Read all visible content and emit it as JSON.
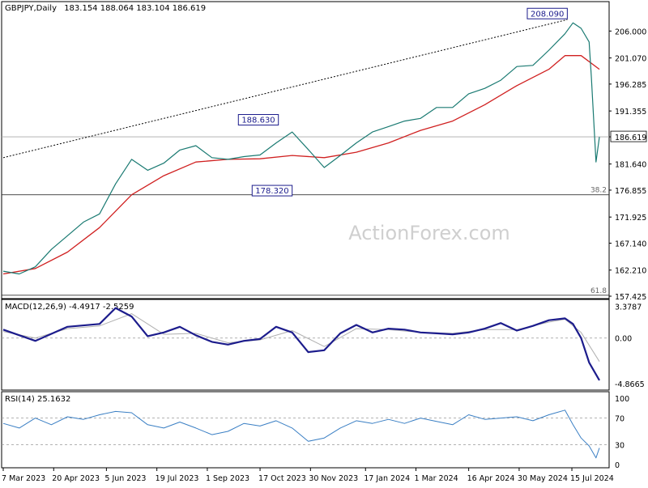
{
  "chart_data": [
    {
      "type": "line",
      "title": "GBPJPY,Daily",
      "ohlc_readout": "183.154 188.064 183.104 186.619",
      "ylim": [
        157.425,
        210.5
      ],
      "y_ticks": [
        "206.000",
        "201.070",
        "196.285",
        "191.355",
        "186.619",
        "181.640",
        "176.855",
        "171.925",
        "167.140",
        "162.210",
        "157.425"
      ],
      "current_price": "186.619",
      "watermark": "ActionForex.com",
      "annotations": [
        {
          "text": "208.090",
          "x": "2024-07-11",
          "y": 208.09
        },
        {
          "text": "188.630",
          "x": "2023-11-02",
          "y": 188.63
        },
        {
          "text": "178.320",
          "x": "2023-11-14",
          "y": 178.32
        }
      ],
      "fib_levels": [
        {
          "label": "38.2",
          "y": 176.0
        },
        {
          "label": "61.8",
          "y": 157.6
        }
      ],
      "trendline": {
        "from": {
          "x": "2023-03-07",
          "y": 182.8
        },
        "to": {
          "x": "2024-07-11",
          "y": 208.09
        }
      },
      "series": [
        {
          "name": "GBPJPY",
          "color": "#1a7a72",
          "x": [
            "2023-03-07",
            "2023-03-21",
            "2023-04-04",
            "2023-04-18",
            "2023-05-02",
            "2023-05-16",
            "2023-05-30",
            "2023-06-13",
            "2023-06-27",
            "2023-07-11",
            "2023-07-25",
            "2023-08-08",
            "2023-08-22",
            "2023-09-05",
            "2023-09-19",
            "2023-10-03",
            "2023-10-17",
            "2023-10-31",
            "2023-11-14",
            "2023-11-28",
            "2023-12-12",
            "2023-12-26",
            "2024-01-09",
            "2024-01-23",
            "2024-02-06",
            "2024-02-20",
            "2024-03-05",
            "2024-03-19",
            "2024-04-02",
            "2024-04-16",
            "2024-04-30",
            "2024-05-14",
            "2024-05-28",
            "2024-06-11",
            "2024-06-25",
            "2024-07-09",
            "2024-07-16",
            "2024-07-23",
            "2024-07-30",
            "2024-08-01",
            "2024-08-05",
            "2024-08-08"
          ],
          "values": [
            162.0,
            161.5,
            162.8,
            166.0,
            168.5,
            171.0,
            172.5,
            178.0,
            182.5,
            180.5,
            181.8,
            184.2,
            185.0,
            182.8,
            182.5,
            183.0,
            183.3,
            185.5,
            187.5,
            184.3,
            181.0,
            183.2,
            185.5,
            187.5,
            188.5,
            189.5,
            190.0,
            192.0,
            192.0,
            194.5,
            195.5,
            197.0,
            199.5,
            199.7,
            202.5,
            205.5,
            207.5,
            206.5,
            204.0,
            197.5,
            182.0,
            186.6
          ]
        },
        {
          "name": "",
          "color": "#d02020",
          "x": [
            "2023-03-07",
            "2023-04-04",
            "2023-05-02",
            "2023-05-30",
            "2023-06-27",
            "2023-07-25",
            "2023-08-22",
            "2023-09-19",
            "2023-10-17",
            "2023-11-14",
            "2023-12-12",
            "2024-01-09",
            "2024-02-06",
            "2024-03-05",
            "2024-04-02",
            "2024-04-30",
            "2024-05-28",
            "2024-06-25",
            "2024-07-09",
            "2024-07-23",
            "2024-08-08"
          ],
          "values": [
            161.5,
            162.5,
            165.5,
            170.0,
            176.0,
            179.5,
            182.0,
            182.5,
            182.6,
            183.2,
            182.8,
            183.8,
            185.5,
            187.8,
            189.5,
            192.5,
            196.0,
            199.0,
            201.5,
            201.5,
            199.0
          ]
        }
      ]
    },
    {
      "type": "line",
      "title": "MACD(12,26,9) -4.4917 -2.5259",
      "y_ticks": [
        "3.3787",
        "0.00",
        "-4.8665"
      ],
      "ylim": [
        -5.2,
        3.6
      ],
      "series": [
        {
          "name": "MACD",
          "color": "#1c1c8c",
          "x": [
            "2023-03-07",
            "2023-04-04",
            "2023-05-02",
            "2023-05-30",
            "2023-06-13",
            "2023-06-27",
            "2023-07-11",
            "2023-07-25",
            "2023-08-08",
            "2023-08-22",
            "2023-09-05",
            "2023-09-19",
            "2023-10-03",
            "2023-10-17",
            "2023-10-31",
            "2023-11-14",
            "2023-11-28",
            "2023-12-12",
            "2023-12-26",
            "2024-01-09",
            "2024-01-23",
            "2024-02-06",
            "2024-02-20",
            "2024-03-05",
            "2024-03-19",
            "2024-04-02",
            "2024-04-16",
            "2024-04-30",
            "2024-05-14",
            "2024-05-28",
            "2024-06-11",
            "2024-06-25",
            "2024-07-09",
            "2024-07-16",
            "2024-07-23",
            "2024-07-30",
            "2024-08-08"
          ],
          "values": [
            0.9,
            -0.3,
            1.2,
            1.5,
            3.2,
            2.3,
            0.2,
            0.6,
            1.2,
            0.3,
            -0.4,
            -0.7,
            -0.3,
            -0.1,
            1.2,
            0.6,
            -1.5,
            -1.3,
            0.5,
            1.4,
            0.6,
            1.0,
            0.9,
            0.6,
            0.5,
            0.4,
            0.6,
            1.0,
            1.6,
            0.8,
            1.3,
            1.9,
            2.1,
            1.5,
            0.0,
            -2.6,
            -4.5
          ]
        },
        {
          "name": "Signal",
          "color": "#b0b0b0",
          "x": [
            "2023-03-07",
            "2023-04-04",
            "2023-05-02",
            "2023-05-30",
            "2023-06-27",
            "2023-07-25",
            "2023-08-22",
            "2023-09-19",
            "2023-10-17",
            "2023-11-14",
            "2023-12-12",
            "2024-01-09",
            "2024-02-06",
            "2024-03-05",
            "2024-04-02",
            "2024-04-30",
            "2024-05-28",
            "2024-06-25",
            "2024-07-09",
            "2024-07-23",
            "2024-08-08"
          ],
          "values": [
            0.7,
            0.0,
            1.0,
            1.3,
            2.6,
            0.4,
            0.5,
            -0.5,
            -0.2,
            0.8,
            -0.9,
            1.0,
            0.9,
            0.6,
            0.5,
            0.9,
            0.9,
            1.7,
            2.0,
            0.6,
            -2.5
          ]
        }
      ]
    },
    {
      "type": "line",
      "title": "RSI(14) 25.1632",
      "y_ticks": [
        "100",
        "70",
        "30",
        "0"
      ],
      "ylim": [
        0,
        100
      ],
      "series": [
        {
          "name": "RSI",
          "color": "#3a7fc4",
          "x": [
            "2023-03-07",
            "2023-03-21",
            "2023-04-04",
            "2023-04-18",
            "2023-05-02",
            "2023-05-16",
            "2023-05-30",
            "2023-06-13",
            "2023-06-27",
            "2023-07-11",
            "2023-07-25",
            "2023-08-08",
            "2023-08-22",
            "2023-09-05",
            "2023-09-19",
            "2023-10-03",
            "2023-10-17",
            "2023-10-31",
            "2023-11-14",
            "2023-11-28",
            "2023-12-12",
            "2023-12-26",
            "2024-01-09",
            "2024-01-23",
            "2024-02-06",
            "2024-02-20",
            "2024-03-05",
            "2024-03-19",
            "2024-04-02",
            "2024-04-16",
            "2024-04-30",
            "2024-05-14",
            "2024-05-28",
            "2024-06-11",
            "2024-06-25",
            "2024-07-09",
            "2024-07-16",
            "2024-07-23",
            "2024-07-30",
            "2024-08-05",
            "2024-08-08"
          ],
          "values": [
            62,
            55,
            70,
            60,
            72,
            68,
            75,
            80,
            78,
            60,
            55,
            64,
            55,
            45,
            50,
            62,
            58,
            66,
            55,
            35,
            40,
            55,
            66,
            62,
            68,
            62,
            70,
            65,
            60,
            75,
            68,
            70,
            72,
            66,
            75,
            82,
            60,
            40,
            28,
            10,
            25
          ]
        }
      ]
    }
  ],
  "x_axis_labels": [
    "7 Mar 2023",
    "20 Apr 2023",
    "5 Jun 2023",
    "19 Jul 2023",
    "1 Sep 2023",
    "17 Oct 2023",
    "30 Nov 2023",
    "17 Jan 2024",
    "1 Mar 2024",
    "16 Apr 2024",
    "30 May 2024",
    "15 Jul 2024"
  ],
  "x_axis_dates": [
    "2023-03-07",
    "2023-04-20",
    "2023-06-05",
    "2023-07-19",
    "2023-09-01",
    "2023-10-17",
    "2023-11-30",
    "2024-01-17",
    "2024-03-01",
    "2024-04-16",
    "2024-05-30",
    "2024-07-15"
  ],
  "colors": {
    "price": "#1a7a72",
    "ma": "#d02020",
    "macd": "#1c1c8c",
    "signal": "#b0b0b0",
    "rsi": "#3a7fc4",
    "label_box": "#1c1c8c"
  }
}
